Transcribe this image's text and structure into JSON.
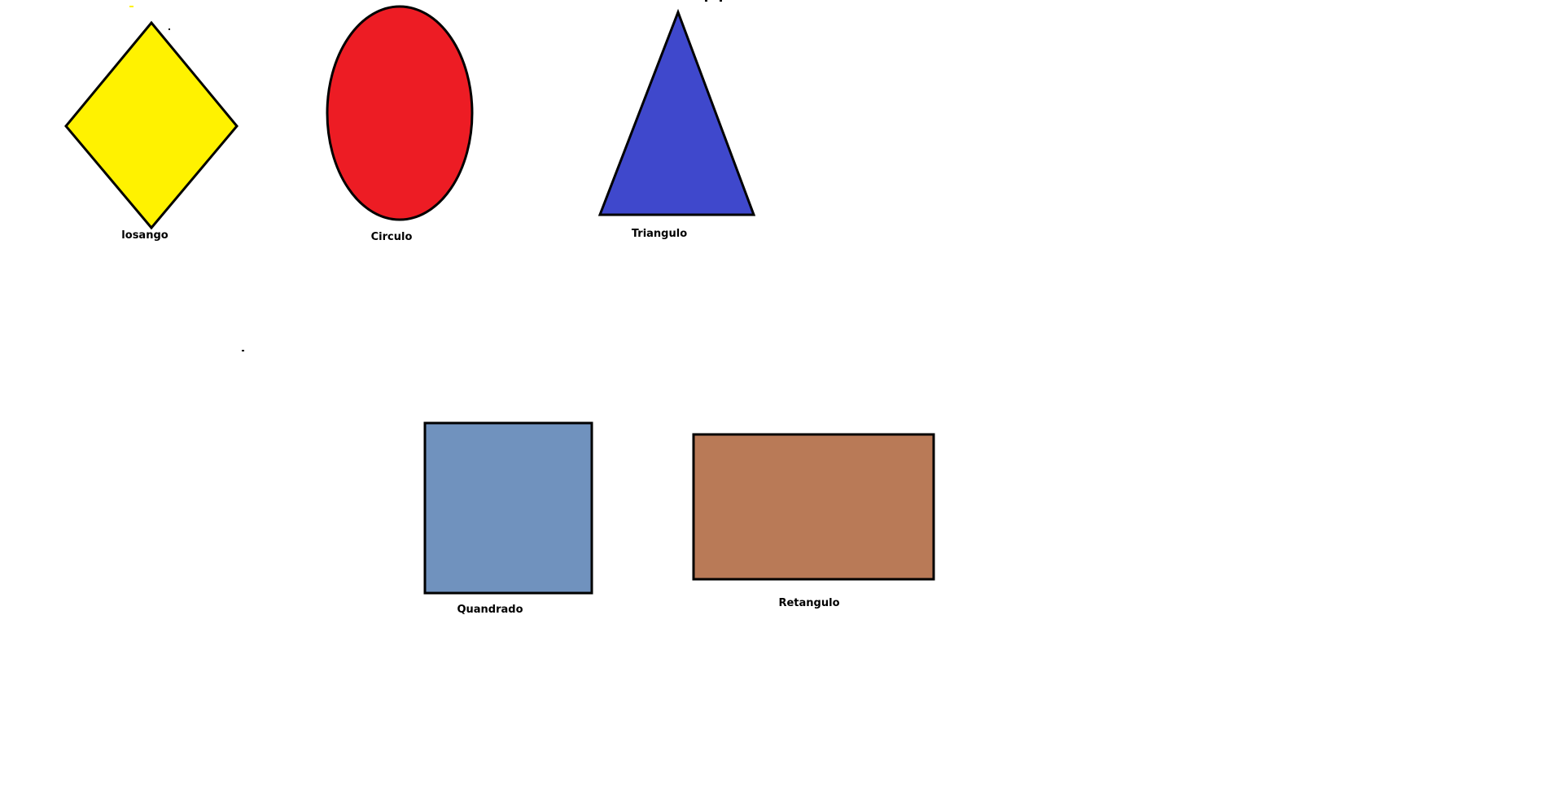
{
  "colors": {
    "background": "#ffffff",
    "stroke": "#000000",
    "losango": "#fff200",
    "circulo": "#ed1c24",
    "triangulo": "#3f48cc",
    "quadrado": "#7092be",
    "retangulo": "#b97a57"
  },
  "shapes": {
    "losango": {
      "label": "losango"
    },
    "circulo": {
      "label": "Circulo"
    },
    "triangulo": {
      "label": "Triangulo"
    },
    "quadrado": {
      "label": "Quandrado"
    },
    "retangulo": {
      "label": "Retangulo"
    }
  }
}
